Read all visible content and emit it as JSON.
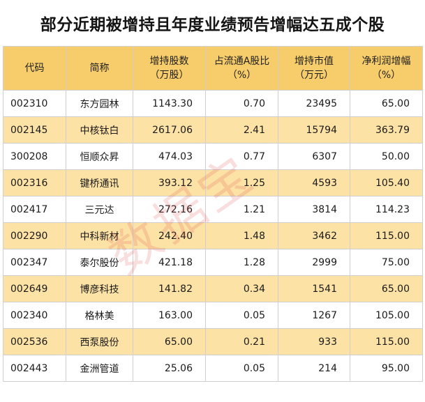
{
  "title": "部分近期被增持且年度业绩预告增幅达五成个股",
  "watermark": "数据宝",
  "colors": {
    "header_bg": "#f7cd6b",
    "alt_row_bg": "#fde2a6",
    "watermark": "#dc4646"
  },
  "table": {
    "headers": [
      {
        "line1": "代码",
        "line2": ""
      },
      {
        "line1": "简称",
        "line2": ""
      },
      {
        "line1": "增持股数",
        "line2": "（万股）"
      },
      {
        "line1": "占流通A股比",
        "line2": "（%）"
      },
      {
        "line1": "增持市值",
        "line2": "（万元）"
      },
      {
        "line1": "净利润增幅",
        "line2": "（%）"
      }
    ],
    "rows": [
      [
        "002310",
        "东方园林",
        "1143.30",
        "0.70",
        "23495",
        "65.00"
      ],
      [
        "002145",
        "中核钛白",
        "2617.06",
        "2.41",
        "15794",
        "363.79"
      ],
      [
        "300208",
        "恒顺众昇",
        "474.03",
        "0.77",
        "6307",
        "50.00"
      ],
      [
        "002316",
        "键桥通讯",
        "393.12",
        "1.25",
        "4593",
        "105.40"
      ],
      [
        "002417",
        "三元达",
        "272.16",
        "1.21",
        "3814",
        "114.23"
      ],
      [
        "002290",
        "中科新材",
        "242.40",
        "1.48",
        "3462",
        "115.00"
      ],
      [
        "002347",
        "泰尔股份",
        "421.18",
        "1.28",
        "2999",
        "75.00"
      ],
      [
        "002649",
        "博彦科技",
        "141.82",
        "0.34",
        "1541",
        "65.00"
      ],
      [
        "002340",
        "格林美",
        "163.00",
        "0.05",
        "1267",
        "105.00"
      ],
      [
        "002536",
        "西泵股份",
        "65.00",
        "0.21",
        "933",
        "115.00"
      ],
      [
        "002443",
        "金洲管道",
        "25.06",
        "0.05",
        "214",
        "95.00"
      ]
    ]
  }
}
